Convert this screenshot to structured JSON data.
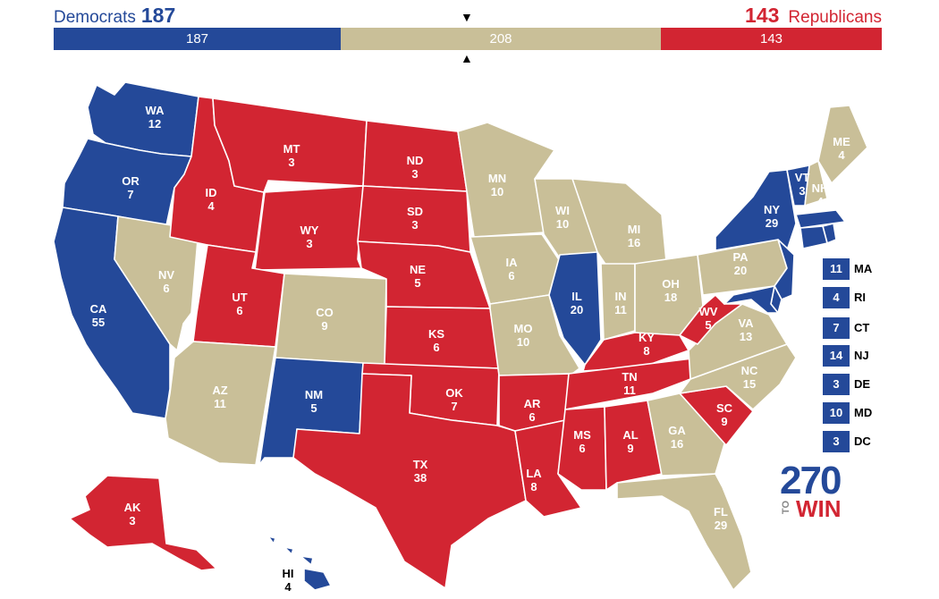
{
  "header": {
    "dem_label": "Democrats",
    "dem_count": "187",
    "rep_count": "143",
    "rep_label": "Republicans"
  },
  "bar": {
    "dem": "187",
    "tossup": "208",
    "rep": "143",
    "marker_top": "▼",
    "marker_bottom": "▲"
  },
  "colors": {
    "dem": "#244999",
    "rep": "#d22532",
    "tossup": "#c9bf98"
  },
  "states": [
    {
      "abbr": "WA",
      "ev": "12",
      "party": "dem"
    },
    {
      "abbr": "OR",
      "ev": "7",
      "party": "dem"
    },
    {
      "abbr": "CA",
      "ev": "55",
      "party": "dem"
    },
    {
      "abbr": "NV",
      "ev": "6",
      "party": "tossup"
    },
    {
      "abbr": "ID",
      "ev": "4",
      "party": "rep"
    },
    {
      "abbr": "MT",
      "ev": "3",
      "party": "rep"
    },
    {
      "abbr": "WY",
      "ev": "3",
      "party": "rep"
    },
    {
      "abbr": "UT",
      "ev": "6",
      "party": "rep"
    },
    {
      "abbr": "AZ",
      "ev": "11",
      "party": "tossup"
    },
    {
      "abbr": "CO",
      "ev": "9",
      "party": "tossup"
    },
    {
      "abbr": "NM",
      "ev": "5",
      "party": "dem"
    },
    {
      "abbr": "ND",
      "ev": "3",
      "party": "rep"
    },
    {
      "abbr": "SD",
      "ev": "3",
      "party": "rep"
    },
    {
      "abbr": "NE",
      "ev": "5",
      "party": "rep"
    },
    {
      "abbr": "KS",
      "ev": "6",
      "party": "rep"
    },
    {
      "abbr": "OK",
      "ev": "7",
      "party": "rep"
    },
    {
      "abbr": "TX",
      "ev": "38",
      "party": "rep"
    },
    {
      "abbr": "MN",
      "ev": "10",
      "party": "tossup"
    },
    {
      "abbr": "IA",
      "ev": "6",
      "party": "tossup"
    },
    {
      "abbr": "MO",
      "ev": "10",
      "party": "tossup"
    },
    {
      "abbr": "AR",
      "ev": "6",
      "party": "rep"
    },
    {
      "abbr": "LA",
      "ev": "8",
      "party": "rep"
    },
    {
      "abbr": "WI",
      "ev": "10",
      "party": "tossup"
    },
    {
      "abbr": "IL",
      "ev": "20",
      "party": "dem"
    },
    {
      "abbr": "MI",
      "ev": "16",
      "party": "tossup"
    },
    {
      "abbr": "IN",
      "ev": "11",
      "party": "tossup"
    },
    {
      "abbr": "OH",
      "ev": "18",
      "party": "tossup"
    },
    {
      "abbr": "KY",
      "ev": "8",
      "party": "rep"
    },
    {
      "abbr": "TN",
      "ev": "11",
      "party": "rep"
    },
    {
      "abbr": "MS",
      "ev": "6",
      "party": "rep"
    },
    {
      "abbr": "AL",
      "ev": "9",
      "party": "rep"
    },
    {
      "abbr": "GA",
      "ev": "16",
      "party": "tossup"
    },
    {
      "abbr": "FL",
      "ev": "29",
      "party": "tossup"
    },
    {
      "abbr": "SC",
      "ev": "9",
      "party": "rep"
    },
    {
      "abbr": "NC",
      "ev": "15",
      "party": "tossup"
    },
    {
      "abbr": "VA",
      "ev": "13",
      "party": "tossup"
    },
    {
      "abbr": "WV",
      "ev": "5",
      "party": "rep"
    },
    {
      "abbr": "PA",
      "ev": "20",
      "party": "tossup"
    },
    {
      "abbr": "NY",
      "ev": "29",
      "party": "dem"
    },
    {
      "abbr": "VT",
      "ev": "3",
      "party": "dem"
    },
    {
      "abbr": "NH",
      "ev": "4",
      "party": "tossup"
    },
    {
      "abbr": "ME",
      "ev": "4",
      "party": "tossup"
    },
    {
      "abbr": "AK",
      "ev": "3",
      "party": "rep"
    },
    {
      "abbr": "HI",
      "ev": "4",
      "party": "dem"
    }
  ],
  "small_states": [
    {
      "abbr": "MA",
      "ev": "11"
    },
    {
      "abbr": "RI",
      "ev": "4"
    },
    {
      "abbr": "CT",
      "ev": "7"
    },
    {
      "abbr": "NJ",
      "ev": "14"
    },
    {
      "abbr": "DE",
      "ev": "3"
    },
    {
      "abbr": "MD",
      "ev": "10"
    },
    {
      "abbr": "DC",
      "ev": "3"
    }
  ],
  "logo": {
    "number": "270",
    "to": "TO",
    "win": "WIN"
  }
}
